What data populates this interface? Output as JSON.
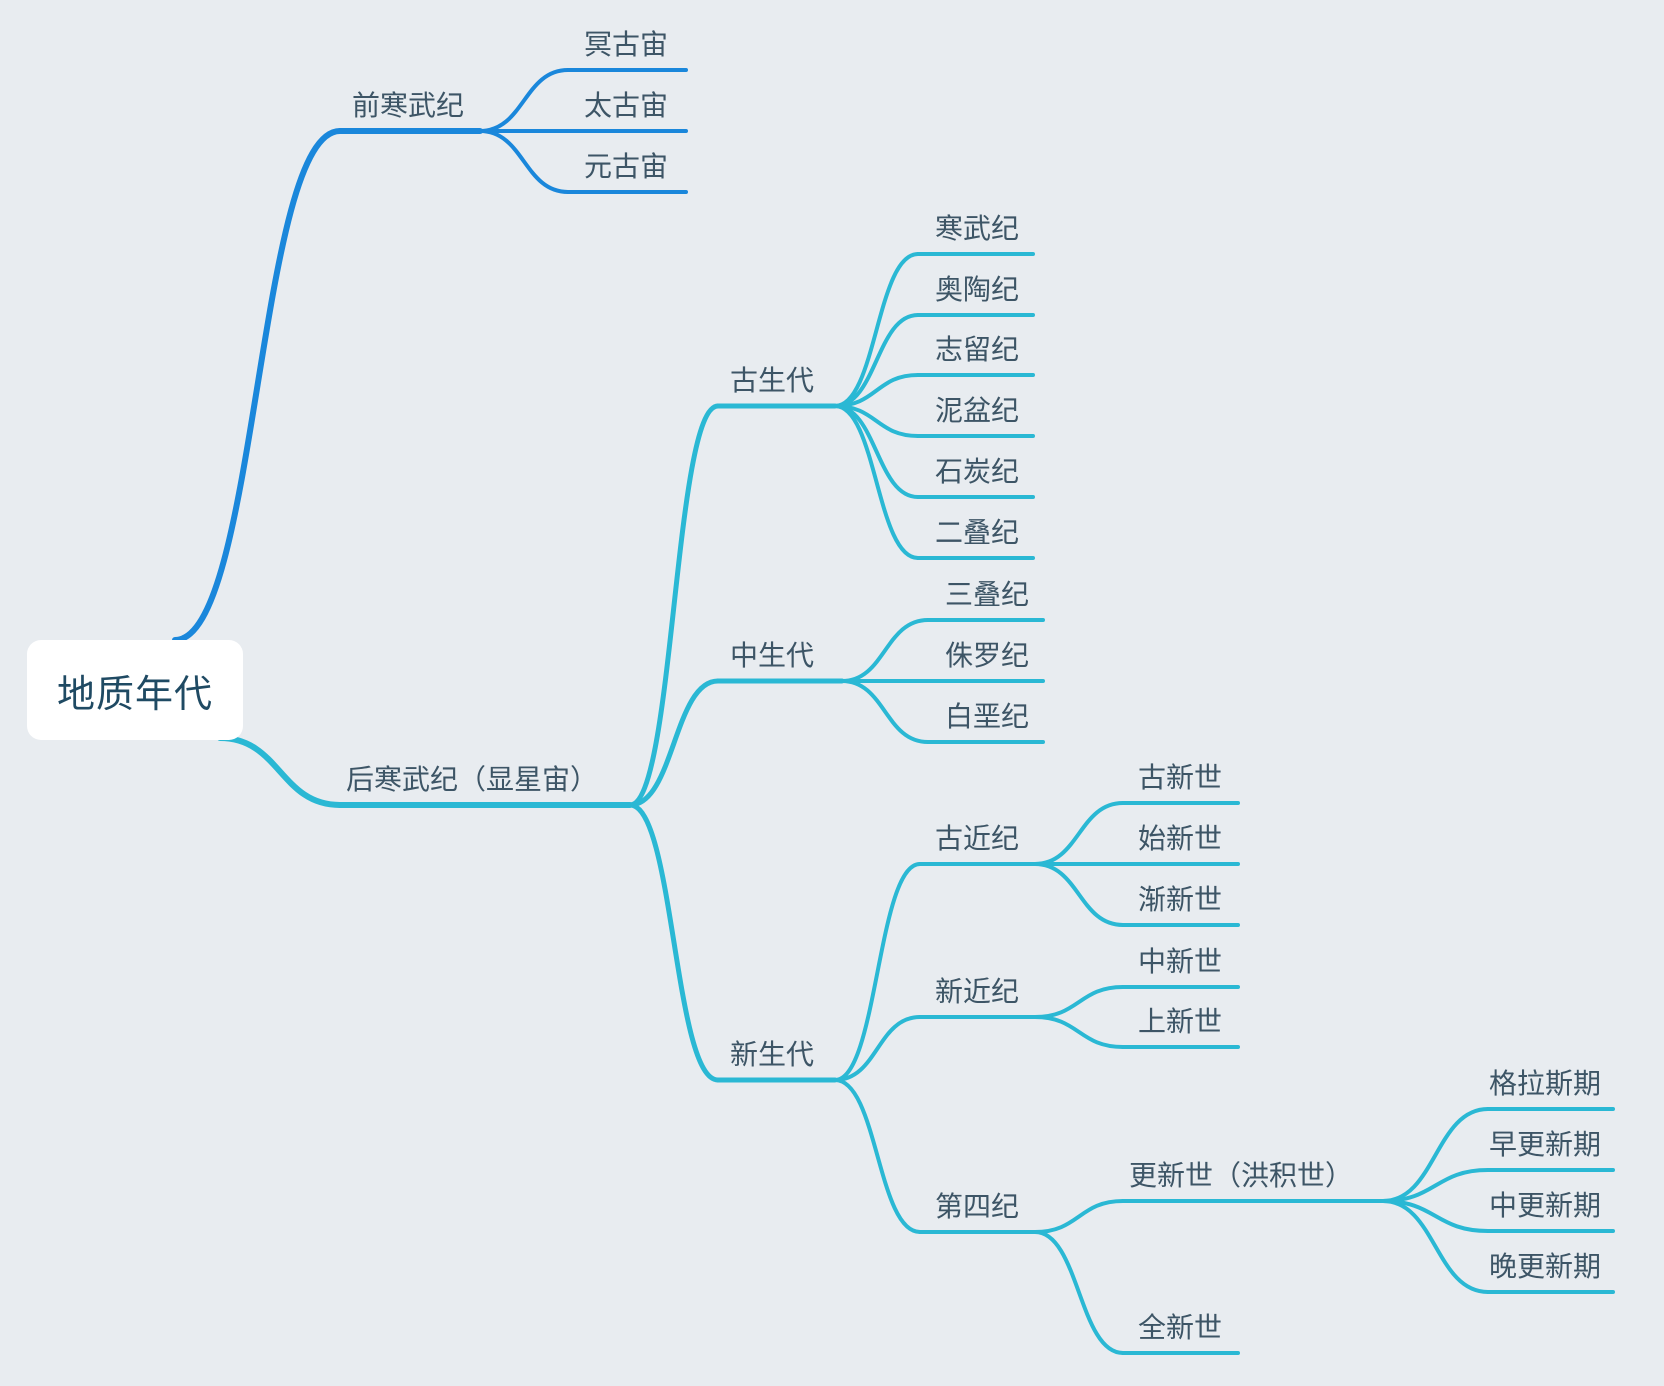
{
  "root": {
    "label": "地质年代"
  },
  "colors": {
    "background": "#e8ecf0",
    "branch_pre_cambrian": "#1a87db",
    "branch_phanerozoic": "#2ab8d4",
    "text": "#3d5566",
    "root_text": "#1f4a63",
    "root_bg": "#ffffff"
  },
  "nodes": {
    "pre_cambrian": "前寒武纪",
    "hadean": "冥古宙",
    "archean": "太古宙",
    "proterozoic": "元古宙",
    "phanerozoic": "后寒武纪（显星宙）",
    "paleozoic": "古生代",
    "cambrian": "寒武纪",
    "ordovician": "奥陶纪",
    "silurian": "志留纪",
    "devonian": "泥盆纪",
    "carboniferous": "石炭纪",
    "permian": "二叠纪",
    "mesozoic": "中生代",
    "triassic": "三叠纪",
    "jurassic": "侏罗纪",
    "cretaceous": "白垩纪",
    "cenozoic": "新生代",
    "paleogene": "古近纪",
    "paleocene": "古新世",
    "eocene": "始新世",
    "oligocene": "渐新世",
    "neogene": "新近纪",
    "miocene": "中新世",
    "pliocene": "上新世",
    "quaternary": "第四纪",
    "pleistocene": "更新世（洪积世）",
    "gelasian": "格拉斯期",
    "early_pleistocene": "早更新期",
    "middle_pleistocene": "中更新期",
    "late_pleistocene": "晚更新期",
    "holocene": "全新世"
  }
}
